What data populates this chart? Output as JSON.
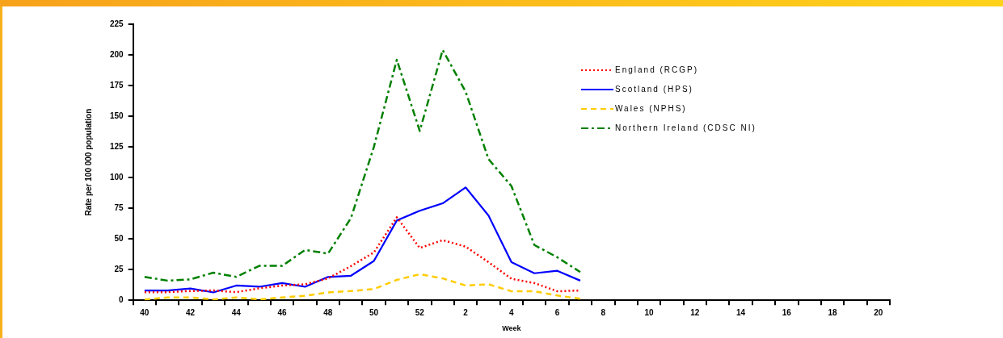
{
  "chart_data": {
    "type": "line",
    "xlabel": "Week",
    "ylabel": "Rate per 100 000 population",
    "categories": [
      "40",
      null,
      "42",
      null,
      "44",
      null,
      "46",
      null,
      "48",
      null,
      "50",
      null,
      "52",
      null,
      "2",
      null,
      "4",
      null,
      "6",
      null,
      "8",
      null,
      "10",
      null,
      "12",
      null,
      "14",
      null,
      "16",
      null,
      "18",
      null,
      "20"
    ],
    "series": [
      {
        "name": "England (RCGP)",
        "color": "#ff0000",
        "line_style": "dotted",
        "values": [
          6.6,
          6.6,
          7.5,
          8,
          6.6,
          9.7,
          12,
          13,
          17.8,
          27.8,
          39,
          67.6,
          42.6,
          49,
          43.7,
          31,
          17.5,
          14,
          7.3,
          8,
          null,
          null,
          null,
          null,
          null,
          null,
          null,
          null,
          null,
          null,
          null,
          null,
          null
        ]
      },
      {
        "name": "Scotland (HPS)",
        "color": "#0000ff",
        "line_style": "solid",
        "values": [
          8,
          8,
          9.6,
          6.4,
          12,
          11,
          14,
          11,
          19,
          20,
          32,
          65,
          73,
          79,
          92,
          69,
          31,
          22,
          24,
          16,
          null,
          null,
          null,
          null,
          null,
          null,
          null,
          null,
          null,
          null,
          null,
          null,
          null
        ]
      },
      {
        "name": "Wales (NPHS)",
        "color": "#ffcc00",
        "line_style": "dashed",
        "values": [
          0.5,
          2.3,
          2.3,
          0.7,
          2.3,
          0.7,
          2.3,
          3.6,
          6.4,
          7.5,
          9.1,
          16.6,
          21.2,
          17.8,
          12,
          13,
          7.3,
          7.3,
          3.9,
          1.2,
          null,
          null,
          null,
          null,
          null,
          null,
          null,
          null,
          null,
          null,
          null,
          null,
          null
        ]
      },
      {
        "name": "Northern Ireland (CDSC NI)",
        "color": "#008000",
        "line_style": "dashdot",
        "values": [
          19,
          16,
          17,
          22.5,
          19,
          28,
          28,
          41,
          38,
          67,
          125,
          196,
          138,
          204,
          170,
          115,
          93,
          45,
          35,
          23,
          null,
          null,
          null,
          null,
          null,
          null,
          null,
          null,
          null,
          null,
          null,
          null,
          null
        ]
      }
    ],
    "ylim": [
      0,
      225
    ],
    "yticks": [
      0,
      25,
      50,
      75,
      100,
      125,
      150,
      175,
      200,
      225
    ],
    "grid": false,
    "legend": "top right",
    "marker": "none"
  }
}
